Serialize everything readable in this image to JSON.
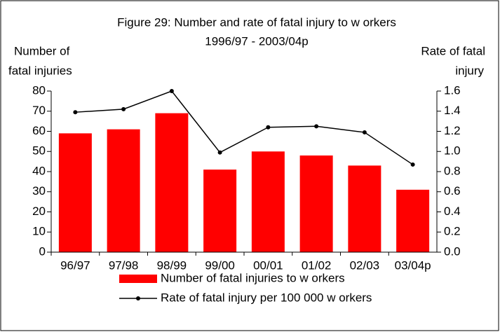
{
  "chart_data": {
    "type": "bar_line",
    "title": "Figure 29: Number and rate of fatal injury to w orkers",
    "subtitle": "1996/97 - 2003/04p",
    "y_label": [
      "Number of",
      "fatal injuries"
    ],
    "y2_label": [
      "Rate of fatal",
      "injury"
    ],
    "categories": [
      "96/97",
      "97/98",
      "98/99",
      "99/00",
      "00/01",
      "01/02",
      "02/03",
      "03/04p"
    ],
    "series": [
      {
        "name": "Number of fatal injuries to w orkers",
        "type": "bar",
        "color": "#ff0000",
        "values": [
          59,
          61,
          69,
          41,
          50,
          48,
          43,
          31
        ]
      },
      {
        "name": "Rate of fatal injury per 100 000 w orkers",
        "type": "line",
        "color": "#000000",
        "axis": "y2",
        "values": [
          1.39,
          1.42,
          1.6,
          0.99,
          1.24,
          1.25,
          1.19,
          0.87
        ]
      }
    ],
    "ylim": [
      0,
      80
    ],
    "yticks": [
      0,
      10,
      20,
      30,
      40,
      50,
      60,
      70,
      80
    ],
    "y2lim": [
      0,
      1.6
    ],
    "y2ticks": [
      {
        "value": 0,
        "label": "0.0"
      },
      0.2,
      0.4,
      0.6,
      0.8,
      {
        "value": 1,
        "label": "1.0"
      },
      1.2,
      1.4,
      1.6
    ],
    "legend": "bottom"
  }
}
